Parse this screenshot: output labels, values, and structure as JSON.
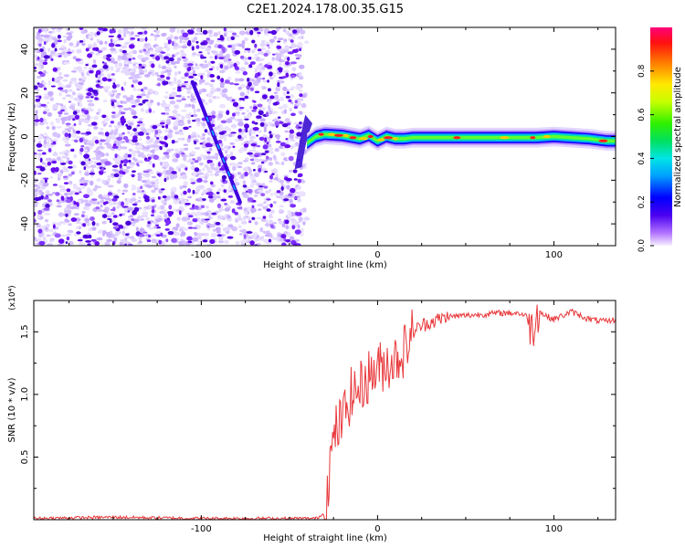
{
  "title": "C2E1.2024.178.00.35.G15",
  "colors": {
    "snr_line": "#e8383b",
    "trace_core": "#ff1a1a",
    "scatter_dark": "#5a00e0",
    "scatter_light": "#d7c2ff"
  },
  "chart_data": [
    {
      "type": "heatmap",
      "title": "C2E1.2024.178.00.35.G15",
      "xlabel": "Height of straight line (km)",
      "ylabel": "Frequency (Hz)",
      "xlim": [
        -195,
        135
      ],
      "ylim": [
        -50,
        50
      ],
      "xticks": [
        -100,
        0,
        100
      ],
      "yticks": [
        40,
        20,
        0,
        -20,
        -40
      ],
      "noise_region_x": [
        -195,
        -43
      ],
      "diagonal_feature": {
        "x": [
          -105,
          -78
        ],
        "y": [
          25,
          -30
        ]
      },
      "onset_x": -40,
      "centerline": {
        "x": [
          -40,
          -35,
          -30,
          -20,
          -10,
          -5,
          0,
          5,
          10,
          15,
          20,
          40,
          60,
          80,
          90,
          100,
          110,
          120,
          130,
          135
        ],
        "y": [
          -3,
          0,
          1,
          0.5,
          -1,
          0.5,
          -2,
          0,
          -1,
          -1,
          -0.5,
          -0.5,
          -0.5,
          -0.5,
          -0.5,
          0,
          -0.5,
          -1,
          -2,
          -2
        ]
      },
      "colorbar": {
        "label": "Normalized spectral amplitude",
        "range": [
          0,
          1
        ],
        "ticks": [
          "0.0",
          "0.2",
          "0.4",
          "0.6",
          "0.8"
        ]
      },
      "grid": false
    },
    {
      "type": "line",
      "xlabel": "Height of straight line (km)",
      "ylabel": "SNR (10 * v/v)",
      "y_exponent": "(x10⁴)",
      "xlim": [
        -195,
        135
      ],
      "ylim": [
        0,
        1.75
      ],
      "xticks": [
        -100,
        0,
        100
      ],
      "yticks": [
        "0.5",
        "1.0",
        "1.5"
      ],
      "series": [
        {
          "x": [
            -195,
            -150,
            -100,
            -60,
            -35,
            -30,
            -27,
            -24,
            -20,
            -15,
            -10,
            -5,
            0,
            5,
            10,
            15,
            20,
            25,
            30,
            40,
            50,
            60,
            70,
            80,
            85,
            88,
            90,
            95,
            100,
            110,
            120,
            130,
            135
          ],
          "y": [
            0.01,
            0.02,
            0.01,
            0.01,
            0.01,
            0.05,
            0.45,
            0.7,
            0.8,
            1.0,
            1.05,
            1.15,
            1.2,
            1.25,
            1.28,
            1.35,
            1.5,
            1.55,
            1.58,
            1.62,
            1.63,
            1.64,
            1.65,
            1.65,
            1.62,
            1.5,
            1.68,
            1.63,
            1.6,
            1.66,
            1.6,
            1.58,
            1.6
          ]
        }
      ],
      "grid": false
    }
  ]
}
